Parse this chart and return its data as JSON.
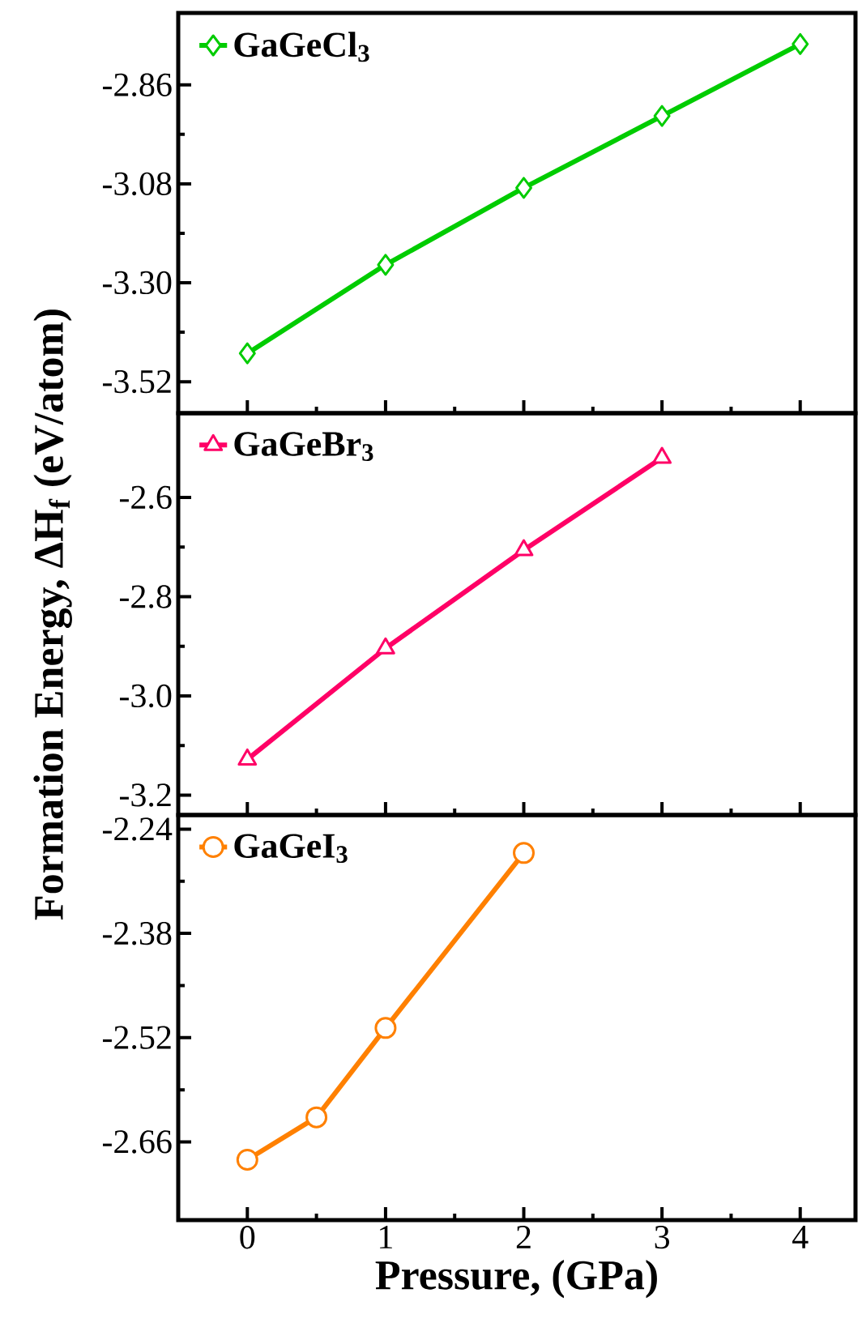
{
  "chart_data": [
    {
      "type": "line",
      "x": [
        0,
        1,
        2,
        3,
        4
      ],
      "xlim": [
        -0.5,
        4.4
      ],
      "xticks": [
        0,
        1,
        2,
        3,
        4
      ],
      "ylim": [
        -3.59,
        -2.7
      ],
      "yticks": [
        -3.52,
        {
          "value": -3.3,
          "label": "-3.30"
        },
        -3.08,
        -2.86
      ],
      "tick_labels": "y",
      "legend": "top left",
      "marker": "diamond",
      "line_style": "solid",
      "series": [
        {
          "name": "GaGeCl$_{3}$",
          "color": "#00cc00",
          "values": [
            -3.457,
            -3.26,
            -3.089,
            -2.929,
            -2.769
          ]
        }
      ]
    },
    {
      "type": "line",
      "x": [
        0,
        1,
        2,
        3
      ],
      "xlim": [
        -0.5,
        4.4
      ],
      "xticks": [
        0,
        1,
        2,
        3,
        4
      ],
      "ylim": [
        -3.24,
        -2.43
      ],
      "yticks": [
        -3.2,
        {
          "value": -3.0,
          "label": "-3.0"
        },
        -2.8,
        -2.6
      ],
      "tick_labels": "y",
      "legend": "top left",
      "marker": "triangle",
      "line_style": "solid",
      "ylabel": "Formation Energy, ΔH$_{f}$ (eV/atom)",
      "series": [
        {
          "name": "GaGeBr$_{3}$",
          "color": "#ff0066",
          "values": [
            -3.128,
            -2.904,
            -2.706,
            -2.52
          ]
        }
      ]
    },
    {
      "type": "line",
      "x": [
        0,
        0.5,
        1,
        2
      ],
      "xlim": [
        -0.5,
        4.4
      ],
      "xticks": [
        0,
        1,
        2,
        3,
        4
      ],
      "ylim": [
        -2.765,
        -2.221
      ],
      "yticks": [
        -2.66,
        -2.52,
        -2.38,
        -2.24
      ],
      "legend": "top left",
      "marker": "circle",
      "line_style": "solid",
      "xlabel": "Pressure, (GPa)",
      "series": [
        {
          "name": "GaGeI$_{3}$",
          "color": "#ff8000",
          "values": [
            -2.684,
            -2.627,
            -2.507,
            -2.272
          ]
        }
      ]
    }
  ]
}
